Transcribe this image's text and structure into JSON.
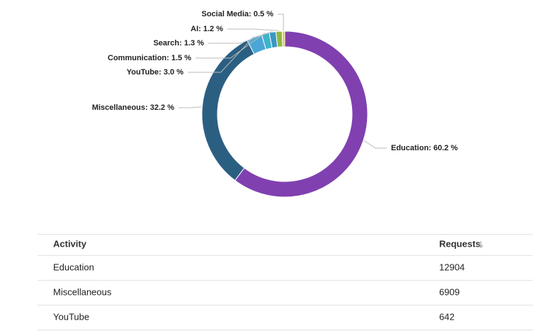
{
  "chart_data": {
    "type": "pie",
    "categories": [
      "Education",
      "Miscellaneous",
      "YouTube",
      "Communication",
      "Search",
      "AI",
      "Social Media"
    ],
    "values": [
      60.2,
      32.2,
      3.0,
      1.5,
      1.3,
      1.2,
      0.5
    ],
    "value_labels": [
      ": 60.2 %",
      ": 32.2 %",
      ": 3.0 %",
      ": 1.5 %",
      ": 1.3 %",
      ": 1.2 %",
      ": 0.5 %"
    ],
    "colors": [
      "#8040b0",
      "#2b5f82",
      "#4aa6d6",
      "#40b2cc",
      "#3a98c4",
      "#8cb847",
      "#e6c93a"
    ]
  },
  "table": {
    "headers": [
      "Activity",
      "Requests"
    ],
    "rows": [
      [
        "Education",
        12904
      ],
      [
        "Miscellaneous",
        6909
      ],
      [
        "YouTube",
        642
      ]
    ]
  }
}
